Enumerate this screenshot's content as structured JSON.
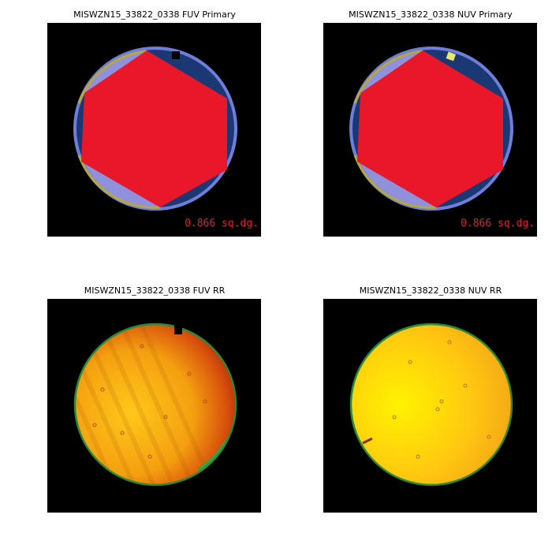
{
  "panels": [
    {
      "title": "MISWZN15_33822_0338 FUV Primary",
      "annotation": "0.866 sq.dg."
    },
    {
      "title": "MISWZN15_33822_0338 NUV Primary",
      "annotation": "0.866 sq.dg."
    },
    {
      "title": "MISWZN15_33822_0338 FUV RR"
    },
    {
      "title": "MISWZN15_33822_0338 NUV RR"
    }
  ]
}
